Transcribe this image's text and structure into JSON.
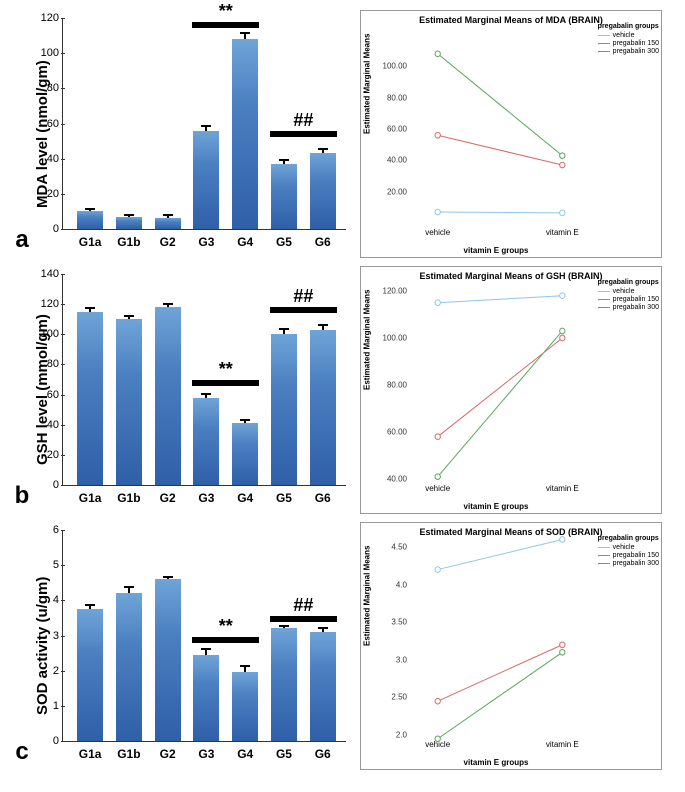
{
  "categories": [
    "G1a",
    "G1b",
    "G2",
    "G3",
    "G4",
    "G5",
    "G6"
  ],
  "line_x_categories": [
    "vehicle",
    "vitamin E"
  ],
  "line_x_axis_label": "vitamin E groups",
  "line_y_axis_label": "Estimated Marginal Means",
  "legend": {
    "title": "pregabalin groups",
    "items": [
      {
        "label": "vehicle",
        "color": "#8fc6e8"
      },
      {
        "label": "pregabalin 150",
        "color": "#d66a6a"
      },
      {
        "label": "pregabalin 300",
        "color": "#5aa85a"
      }
    ]
  },
  "panels": {
    "a": {
      "label": "a",
      "y_axis_label": "MDA level (nmol/gm)",
      "ylim": [
        0,
        120
      ],
      "ytick_step": 20,
      "bars": [
        {
          "cat": "G1a",
          "value": 10,
          "err": 2
        },
        {
          "cat": "G1b",
          "value": 7,
          "err": 1.5
        },
        {
          "cat": "G2",
          "value": 6.5,
          "err": 2
        },
        {
          "cat": "G3",
          "value": 56,
          "err": 3
        },
        {
          "cat": "G4",
          "value": 108,
          "err": 4
        },
        {
          "cat": "G5",
          "value": 37,
          "err": 3
        },
        {
          "cat": "G6",
          "value": 43,
          "err": 3
        }
      ],
      "sig": [
        {
          "from": "G3",
          "to": "G4",
          "y": 118,
          "label": "**"
        },
        {
          "from": "G5",
          "to": "G6",
          "y": 56,
          "label": "##"
        }
      ],
      "line_title": "Estimated Marginal Means of MDA (BRAIN)",
      "line_ylim": [
        0,
        120
      ],
      "line_yticks": [
        20,
        40,
        60,
        80,
        100
      ],
      "lines": [
        {
          "color": "#8fc6e8",
          "vals": [
            7,
            6.5
          ]
        },
        {
          "color": "#d66a6a",
          "vals": [
            56,
            37
          ]
        },
        {
          "color": "#5aa85a",
          "vals": [
            108,
            43
          ]
        }
      ]
    },
    "b": {
      "label": "b",
      "y_axis_label": "GSH level (mmol/gm)",
      "ylim": [
        0,
        140
      ],
      "ytick_step": 20,
      "bars": [
        {
          "cat": "G1a",
          "value": 115,
          "err": 3
        },
        {
          "cat": "G1b",
          "value": 110,
          "err": 3
        },
        {
          "cat": "G2",
          "value": 118,
          "err": 3
        },
        {
          "cat": "G3",
          "value": 58,
          "err": 3
        },
        {
          "cat": "G4",
          "value": 41,
          "err": 3
        },
        {
          "cat": "G5",
          "value": 100,
          "err": 4
        },
        {
          "cat": "G6",
          "value": 103,
          "err": 4
        }
      ],
      "sig": [
        {
          "from": "G3",
          "to": "G4",
          "y": 70,
          "label": "**"
        },
        {
          "from": "G5",
          "to": "G6",
          "y": 118,
          "label": "##"
        }
      ],
      "line_title": "Estimated Marginal Means of GSH (BRAIN)",
      "line_ylim": [
        40,
        120
      ],
      "line_yticks": [
        40,
        60,
        80,
        100,
        120
      ],
      "lines": [
        {
          "color": "#8fc6e8",
          "vals": [
            115,
            118
          ]
        },
        {
          "color": "#d66a6a",
          "vals": [
            58,
            100
          ]
        },
        {
          "color": "#5aa85a",
          "vals": [
            41,
            103
          ]
        }
      ]
    },
    "c": {
      "label": "c",
      "y_axis_label": "SOD activity (u/gm)",
      "ylim": [
        0,
        6
      ],
      "ytick_step": 1,
      "bars": [
        {
          "cat": "G1a",
          "value": 3.75,
          "err": 0.15
        },
        {
          "cat": "G1b",
          "value": 4.2,
          "err": 0.2
        },
        {
          "cat": "G2",
          "value": 4.6,
          "err": 0.1
        },
        {
          "cat": "G3",
          "value": 2.45,
          "err": 0.2
        },
        {
          "cat": "G4",
          "value": 1.95,
          "err": 0.2
        },
        {
          "cat": "G5",
          "value": 3.2,
          "err": 0.1
        },
        {
          "cat": "G6",
          "value": 3.1,
          "err": 0.15
        }
      ],
      "sig": [
        {
          "from": "G3",
          "to": "G4",
          "y": 2.95,
          "label": "**"
        },
        {
          "from": "G5",
          "to": "G6",
          "y": 3.55,
          "label": "##"
        }
      ],
      "line_title": "Estimated Marginal Means of SOD (BRAIN)",
      "line_ylim": [
        2.0,
        4.5
      ],
      "line_yticks": [
        2.0,
        2.5,
        3.0,
        3.5,
        4.0,
        4.5
      ],
      "lines": [
        {
          "color": "#8fc6e8",
          "vals": [
            4.2,
            4.6
          ]
        },
        {
          "color": "#d66a6a",
          "vals": [
            2.45,
            3.2
          ]
        },
        {
          "color": "#5aa85a",
          "vals": [
            1.95,
            3.1
          ]
        }
      ]
    }
  }
}
